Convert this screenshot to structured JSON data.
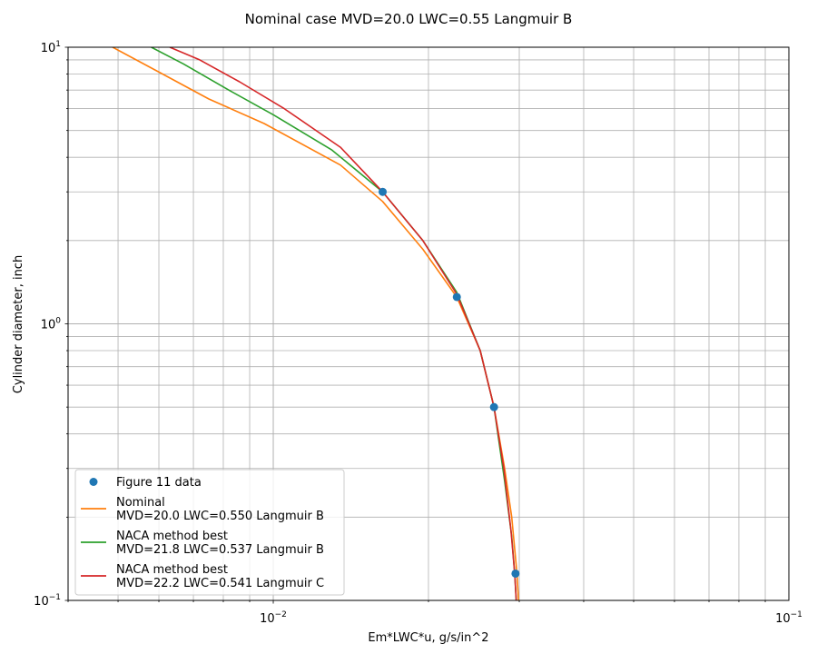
{
  "chart_data": {
    "type": "line",
    "title": "Nominal case MVD=20.0 LWC=0.55 Langmuir B",
    "xlabel": "Em*LWC*u, g/s/in^2",
    "ylabel": "Cylinder diameter, inch",
    "xscale": "log",
    "yscale": "log",
    "xlim": [
      0.004,
      0.1
    ],
    "ylim": [
      0.1,
      10
    ],
    "grid": "major+minor",
    "legend_position": "lower-left",
    "x_tick_labels": [
      {
        "value": 0.01,
        "base": "10",
        "exp": "−2"
      },
      {
        "value": 0.1,
        "base": "10",
        "exp": "−1"
      }
    ],
    "y_tick_labels": [
      {
        "value": 0.1,
        "base": "10",
        "exp": "−1"
      },
      {
        "value": 1,
        "base": "10",
        "exp": "0"
      },
      {
        "value": 10,
        "base": "10",
        "exp": "1"
      }
    ],
    "series": [
      {
        "name": "Figure 11 data",
        "style": "markers",
        "color": "#1f77b4",
        "points": [
          [
            0.0163,
            3.0
          ],
          [
            0.0227,
            1.25
          ],
          [
            0.0268,
            0.5
          ],
          [
            0.0295,
            0.125
          ]
        ]
      },
      {
        "name": "Nominal\nMVD=20.0 LWC=0.550 Langmuir B",
        "style": "line",
        "color": "#ff7f0e",
        "points": [
          [
            0.00488,
            10.0
          ],
          [
            0.0061,
            8.0
          ],
          [
            0.0075,
            6.5
          ],
          [
            0.0096,
            5.3
          ],
          [
            0.0135,
            3.75
          ],
          [
            0.0163,
            2.77
          ],
          [
            0.0195,
            1.86
          ],
          [
            0.0227,
            1.25
          ],
          [
            0.0252,
            0.8
          ],
          [
            0.0268,
            0.5
          ],
          [
            0.0281,
            0.3
          ],
          [
            0.029,
            0.2
          ],
          [
            0.0297,
            0.125
          ],
          [
            0.0299,
            0.1
          ]
        ]
      },
      {
        "name": "NACA method best\nMVD=21.8 LWC=0.537 Langmuir B",
        "style": "line",
        "color": "#2ca02c",
        "points": [
          [
            0.0058,
            10.0
          ],
          [
            0.0067,
            8.7
          ],
          [
            0.0082,
            7.0
          ],
          [
            0.01,
            5.7
          ],
          [
            0.013,
            4.25
          ],
          [
            0.0163,
            3.0
          ],
          [
            0.0195,
            2.0
          ],
          [
            0.0227,
            1.3
          ],
          [
            0.0252,
            0.8
          ],
          [
            0.0268,
            0.5
          ],
          [
            0.0281,
            0.27
          ],
          [
            0.029,
            0.17
          ],
          [
            0.0294,
            0.125
          ],
          [
            0.0296,
            0.1
          ]
        ]
      },
      {
        "name": "NACA method best\nMVD=22.2 LWC=0.541 Langmuir C",
        "style": "line",
        "color": "#d62728",
        "points": [
          [
            0.0063,
            10.0
          ],
          [
            0.0072,
            9.0
          ],
          [
            0.0086,
            7.5
          ],
          [
            0.0105,
            6.0
          ],
          [
            0.0135,
            4.35
          ],
          [
            0.0163,
            3.0
          ],
          [
            0.0195,
            2.0
          ],
          [
            0.0227,
            1.28
          ],
          [
            0.0252,
            0.8
          ],
          [
            0.0268,
            0.5
          ],
          [
            0.028,
            0.3
          ],
          [
            0.0289,
            0.18
          ],
          [
            0.0294,
            0.125
          ],
          [
            0.0296,
            0.1
          ]
        ]
      }
    ]
  }
}
